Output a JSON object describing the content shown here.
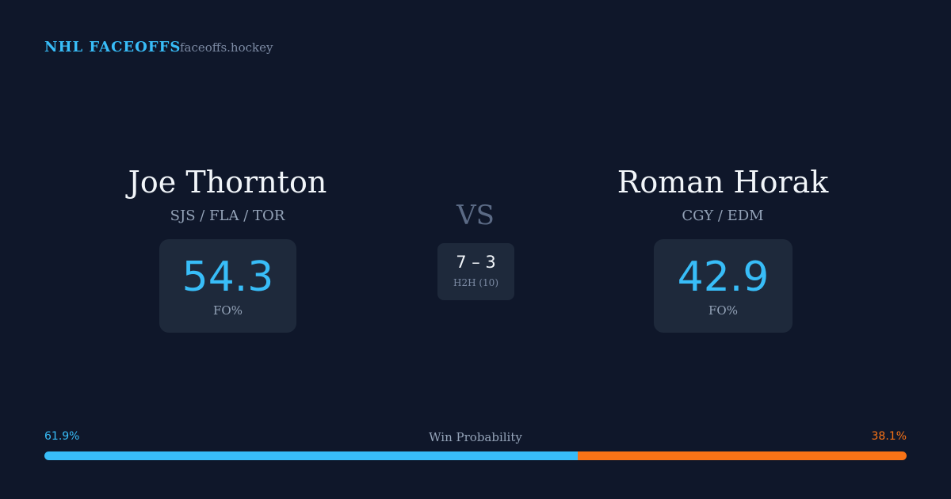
{
  "header": {
    "brand": "NHL FACEOFFS",
    "site": "faceoffs.hockey"
  },
  "players": [
    {
      "name": "Joe Thornton",
      "teams": "SJS / FLA / TOR",
      "stat": "54.3",
      "stat_label": "FO%"
    },
    {
      "name": "Roman Horak",
      "teams": "CGY / EDM",
      "stat": "42.9",
      "stat_label": "FO%"
    }
  ],
  "versus": "VS",
  "h2h": {
    "score": "7 – 3",
    "label": "H2H (10)"
  },
  "win_probability": {
    "title": "Win Probability",
    "values": [
      61.9,
      38.1
    ],
    "value_labels": [
      "61.9%",
      "38.1%"
    ],
    "colors": [
      "#38bdf8",
      "#f97316"
    ],
    "lim": [
      0,
      100
    ]
  }
}
